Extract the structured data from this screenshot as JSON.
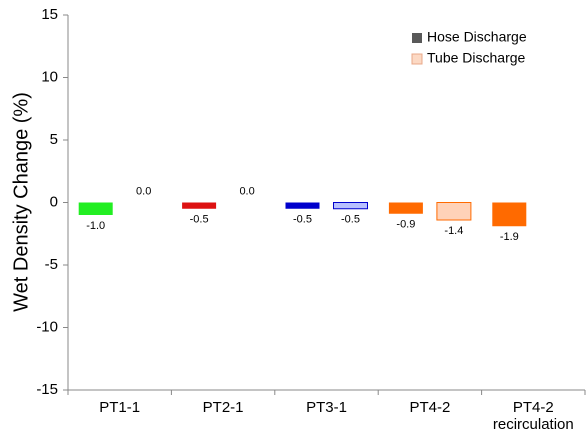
{
  "chart_data": {
    "type": "bar",
    "y_label": "Wet Density Change (%)",
    "categories": [
      "PT1-1",
      "PT2-1",
      "PT3-1",
      "PT4-2",
      "PT4-2 recirculation"
    ],
    "series": [
      {
        "name": "Hose Discharge",
        "color": "#595959",
        "colors": [
          "#22ee22",
          "#dd1111",
          "#0000cc",
          "#ff6a00",
          "#ff6a00"
        ],
        "values": [
          -1.0,
          -0.5,
          -0.5,
          -0.9,
          -1.9
        ],
        "value_labels": [
          "-1.0",
          "-0.5",
          "-0.5",
          "-0.9",
          "-1.9"
        ]
      },
      {
        "name": "Tube Discharge",
        "color": "#fcd9c4",
        "colors": [
          "#bdf7bd",
          "#f7b8b8",
          "#b8c0ff",
          "#ffd2b8",
          "#ffd2b8"
        ],
        "values": [
          0.0,
          0.0,
          -0.5,
          -1.4,
          null
        ],
        "value_labels": [
          "0.0",
          "0.0",
          "-0.5",
          "-1.4",
          null
        ]
      }
    ],
    "ylim": [
      -15,
      15
    ],
    "yticks": [
      -15,
      -10,
      -5,
      0,
      5,
      10,
      15
    ],
    "legend": "upper right"
  }
}
